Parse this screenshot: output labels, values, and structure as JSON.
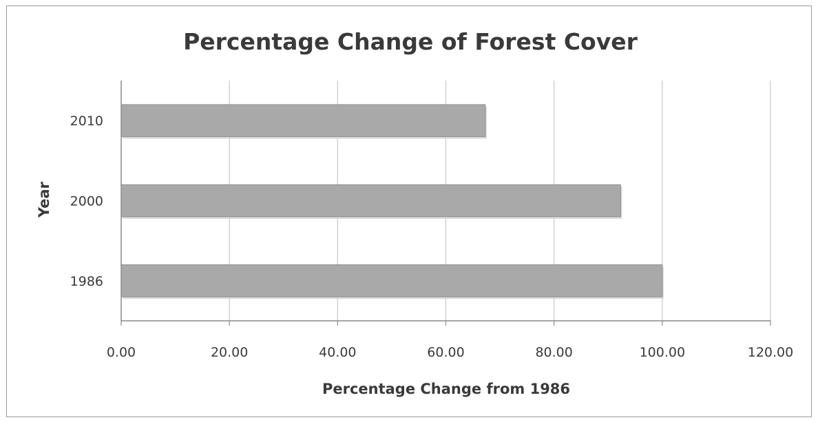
{
  "chart_data": {
    "type": "bar",
    "orientation": "horizontal",
    "title": "Percentage Change of Forest Cover",
    "xlabel": "Percentage Change from 1986",
    "ylabel": "Year",
    "categories": [
      "2010",
      "2000",
      "1986"
    ],
    "values": [
      67.3,
      92.3,
      100.0
    ],
    "xlim": [
      0,
      120
    ],
    "xticks": [
      "0.00",
      "20.00",
      "40.00",
      "60.00",
      "80.00",
      "100.00",
      "120.00"
    ],
    "grid": "vertical",
    "bar_color": "#a9a9a9",
    "legend": "none"
  }
}
